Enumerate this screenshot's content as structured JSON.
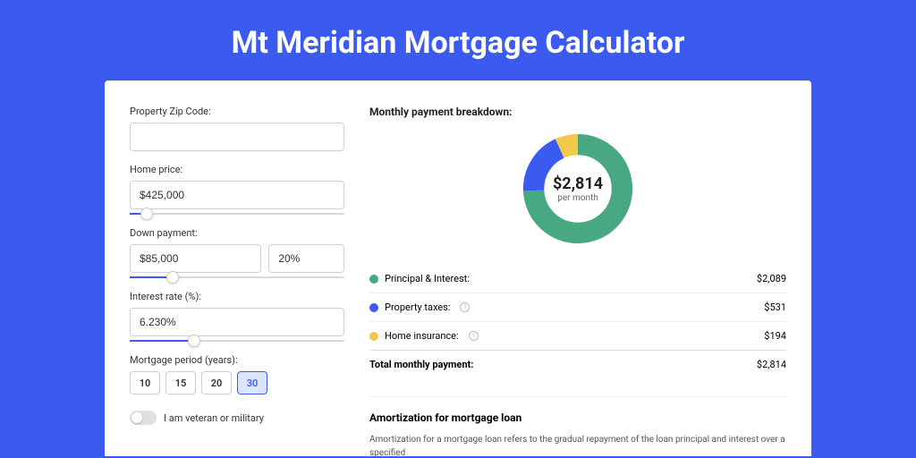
{
  "page": {
    "title": "Mt Meridian Mortgage Calculator",
    "background_color": "#3b5bf0",
    "card_background": "#ffffff"
  },
  "form": {
    "zip": {
      "label": "Property Zip Code:",
      "value": ""
    },
    "home_price": {
      "label": "Home price:",
      "value": "$425,000",
      "slider_pct": 8
    },
    "down_payment": {
      "label": "Down payment:",
      "amount": "$85,000",
      "percent": "20%",
      "slider_pct": 20
    },
    "interest_rate": {
      "label": "Interest rate (%):",
      "value": "6.230%",
      "slider_pct": 30
    },
    "period": {
      "label": "Mortgage period (years):",
      "options": [
        "10",
        "15",
        "20",
        "30"
      ],
      "selected": "30"
    },
    "veteran": {
      "label": "I am veteran or military",
      "checked": false
    }
  },
  "breakdown": {
    "title": "Monthly payment breakdown:",
    "donut": {
      "amount": "$2,814",
      "sub": "per month",
      "slices": [
        {
          "key": "principal_interest",
          "color": "#48a882",
          "pct": 74.2
        },
        {
          "key": "property_taxes",
          "color": "#3b5bf0",
          "pct": 18.9
        },
        {
          "key": "home_insurance",
          "color": "#f3c94c",
          "pct": 6.9
        }
      ],
      "stroke_width": 18
    },
    "rows": [
      {
        "color": "#48a882",
        "label": "Principal & Interest:",
        "info": false,
        "value": "$2,089"
      },
      {
        "color": "#3b5bf0",
        "label": "Property taxes:",
        "info": true,
        "value": "$531"
      },
      {
        "color": "#f3c94c",
        "label": "Home insurance:",
        "info": true,
        "value": "$194"
      }
    ],
    "total": {
      "label": "Total monthly payment:",
      "value": "$2,814"
    }
  },
  "amortization": {
    "title": "Amortization for mortgage loan",
    "text": "Amortization for a mortgage loan refers to the gradual repayment of the loan principal and interest over a specified"
  }
}
